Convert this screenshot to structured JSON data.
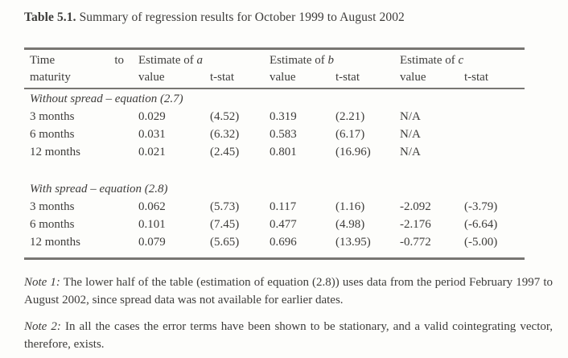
{
  "page": {
    "background": "#fdfdfb",
    "text_color": "#3d3c3a",
    "rule_color": "#787672"
  },
  "title": {
    "label": "Table 5.1.",
    "text": " Summary of regression results for October 1999 to August 2002"
  },
  "table": {
    "header": {
      "col1_word1": "Time",
      "col1_word2": "to",
      "col1_line2": "maturity",
      "groups": [
        {
          "prefix": "Estimate of ",
          "symbol": "a",
          "sub": [
            "value",
            "t-stat"
          ]
        },
        {
          "prefix": "Estimate of ",
          "symbol": "b",
          "sub": [
            "value",
            "t-stat"
          ]
        },
        {
          "prefix": "Estimate of ",
          "symbol": "c",
          "sub": [
            "value",
            "t-stat"
          ]
        }
      ]
    },
    "sections": [
      {
        "heading": "Without spread – equation (2.7)",
        "rows": [
          {
            "label": "3 months",
            "values": [
              "0.029",
              "(4.52)",
              "0.319",
              "(2.21)",
              "N/A",
              ""
            ]
          },
          {
            "label": "6 months",
            "values": [
              "0.031",
              "(6.32)",
              "0.583",
              "(6.17)",
              "N/A",
              ""
            ]
          },
          {
            "label": "12 months",
            "values": [
              "0.021",
              "(2.45)",
              "0.801",
              "(16.96)",
              "N/A",
              ""
            ]
          }
        ]
      },
      {
        "heading": "With spread – equation (2.8)",
        "rows": [
          {
            "label": "3 months",
            "values": [
              "0.062",
              "(5.73)",
              "0.117",
              "(1.16)",
              "-2.092",
              "(-3.79)"
            ]
          },
          {
            "label": "6 months",
            "values": [
              "0.101",
              "(7.45)",
              "0.477",
              "(4.98)",
              "-2.176",
              "(-6.64)"
            ]
          },
          {
            "label": "12 months",
            "values": [
              "0.079",
              "(5.65)",
              "0.696",
              "(13.95)",
              "-0.772",
              "(-5.00)"
            ]
          }
        ]
      }
    ]
  },
  "notes": [
    {
      "label": "Note 1:",
      "text": " The lower half of the table (estimation of equation (2.8)) uses data from the period February 1997 to August 2002, since spread data was not available for earlier dates."
    },
    {
      "label": "Note 2:",
      "text": " In all the cases the error terms have been shown to be stationary, and a valid cointegrating vector, therefore, exists."
    }
  ]
}
